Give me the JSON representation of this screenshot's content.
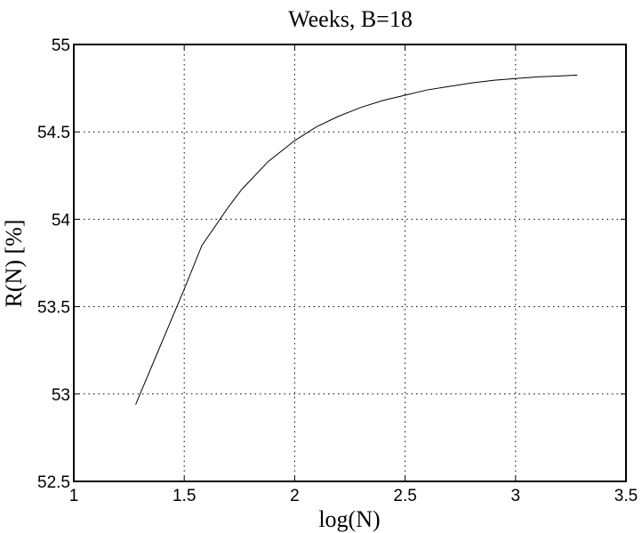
{
  "chart_data": {
    "type": "line",
    "title": "Weeks, B=18",
    "xlabel": "log(N)",
    "ylabel": "R(N) [%]",
    "xlim": [
      1,
      3.5
    ],
    "ylim": [
      52.5,
      55
    ],
    "xticks": [
      1,
      1.5,
      2,
      2.5,
      3,
      3.5
    ],
    "xtick_labels": [
      "1",
      "1.5",
      "2",
      "2.5",
      "3",
      "3.5"
    ],
    "yticks": [
      52.5,
      53,
      53.5,
      54,
      54.5,
      55
    ],
    "ytick_labels": [
      "52.5",
      "53",
      "53.5",
      "54",
      "54.5",
      "55"
    ],
    "grid": true,
    "series": [
      {
        "x": [
          1.28,
          1.4,
          1.5,
          1.58,
          1.7,
          1.76,
          1.88,
          2.0,
          2.1,
          2.2,
          2.3,
          2.4,
          2.5,
          2.6,
          2.7,
          2.8,
          2.9,
          3.0,
          3.1,
          3.2,
          3.28
        ],
        "y": [
          52.94,
          53.3,
          53.6,
          53.85,
          54.07,
          54.17,
          54.33,
          54.45,
          54.53,
          54.59,
          54.64,
          54.68,
          54.71,
          54.74,
          54.76,
          54.78,
          54.795,
          54.805,
          54.815,
          54.82,
          54.825
        ],
        "color": "#000000"
      }
    ]
  }
}
